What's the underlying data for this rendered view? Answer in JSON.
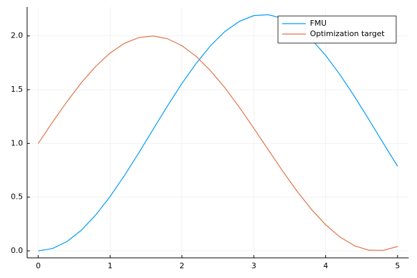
{
  "chart_data": {
    "type": "line",
    "x": [
      0,
      0.2,
      0.4,
      0.6,
      0.8,
      1.0,
      1.2,
      1.4,
      1.6,
      1.8,
      2.0,
      2.2,
      2.4,
      2.6,
      2.8,
      3.0,
      3.2,
      3.4,
      3.6,
      3.8,
      4.0,
      4.2,
      4.4,
      4.6,
      4.8,
      5.0
    ],
    "series": [
      {
        "name": "FMU",
        "color": "#009af9",
        "values": [
          0,
          0.022,
          0.087,
          0.192,
          0.334,
          0.506,
          0.701,
          0.913,
          1.132,
          1.35,
          1.558,
          1.747,
          1.911,
          2.043,
          2.136,
          2.189,
          2.198,
          2.164,
          2.086,
          1.97,
          1.819,
          1.639,
          1.438,
          1.223,
          1.004,
          0.788
        ]
      },
      {
        "name": "Optimization target",
        "color": "#e26f46",
        "values": [
          1.0,
          1.199,
          1.389,
          1.565,
          1.717,
          1.841,
          1.932,
          1.985,
          2.0,
          1.974,
          1.909,
          1.809,
          1.675,
          1.516,
          1.335,
          1.141,
          0.942,
          0.744,
          0.557,
          0.388,
          0.243,
          0.128,
          0.048,
          0.006,
          0.004,
          0.041
        ]
      }
    ],
    "xlim": [
      -0.155,
      5.155
    ],
    "ylim": [
      -0.065,
      2.27
    ],
    "xticks": [
      0,
      1,
      2,
      3,
      4,
      5
    ],
    "yticks": [
      {
        "value": 0,
        "label": "0.0"
      },
      {
        "value": 0.5,
        "label": "0.5"
      },
      {
        "value": 1,
        "label": "1.0"
      },
      {
        "value": 1.5,
        "label": "1.5"
      },
      {
        "value": 2,
        "label": "2.0"
      }
    ],
    "grid": true,
    "legend": "top-right"
  }
}
